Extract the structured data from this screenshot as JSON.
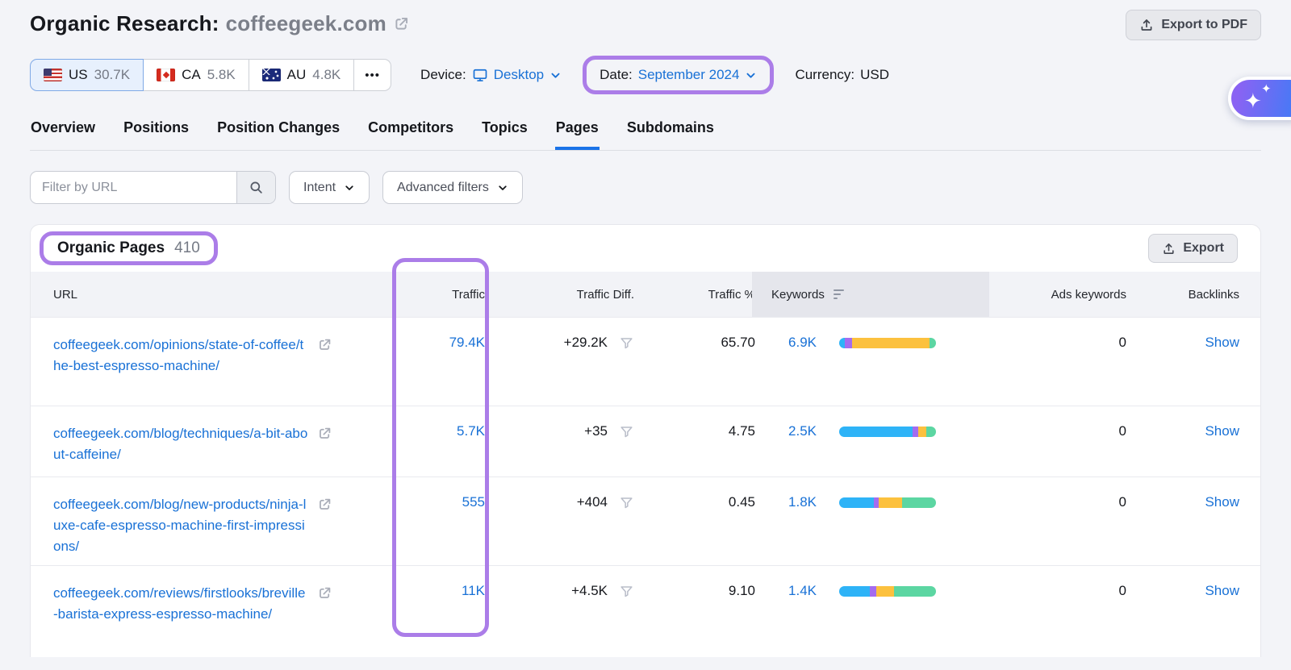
{
  "header": {
    "title_prefix": "Organic Research:",
    "domain": "coffeegeek.com",
    "export_pdf_label": "Export to PDF"
  },
  "controls": {
    "countries": [
      {
        "code": "US",
        "value": "30.7K"
      },
      {
        "code": "CA",
        "value": "5.8K"
      },
      {
        "code": "AU",
        "value": "4.8K"
      }
    ],
    "more_label": "•••",
    "device_label": "Device:",
    "device_value": "Desktop",
    "date_label": "Date:",
    "date_value": "September 2024",
    "currency_label": "Currency:",
    "currency_value": "USD"
  },
  "tabs": [
    {
      "label": "Overview"
    },
    {
      "label": "Positions"
    },
    {
      "label": "Position Changes"
    },
    {
      "label": "Competitors"
    },
    {
      "label": "Topics"
    },
    {
      "label": "Pages"
    },
    {
      "label": "Subdomains"
    }
  ],
  "toolbar": {
    "filter_placeholder": "Filter by URL",
    "intent_label": "Intent",
    "advanced_filters_label": "Advanced filters"
  },
  "table": {
    "title": "Organic Pages",
    "count": "410",
    "export_label": "Export",
    "columns": {
      "url": "URL",
      "traffic": "Traffic",
      "traffic_diff": "Traffic Diff.",
      "traffic_pct": "Traffic %",
      "keywords": "Keywords",
      "ads_keywords": "Ads keywords",
      "backlinks": "Backlinks"
    },
    "rows": [
      {
        "url": "coffeegeek.com/opinions/state-of-coffee/the-best-espresso-machine/",
        "traffic": "79.4K",
        "traffic_diff": "+29.2K",
        "traffic_pct": "65.70",
        "keywords": "6.9K",
        "intent_bar": [
          {
            "intent": "informational",
            "pct": 6
          },
          {
            "intent": "navigational",
            "pct": 7
          },
          {
            "intent": "commercial",
            "pct": 80
          },
          {
            "intent": "transactional",
            "pct": 7
          }
        ],
        "ads_keywords": "0",
        "backlinks": "Show"
      },
      {
        "url": "coffeegeek.com/blog/techniques/a-bit-about-caffeine/",
        "traffic": "5.7K",
        "traffic_diff": "+35",
        "traffic_pct": "4.75",
        "keywords": "2.5K",
        "intent_bar": [
          {
            "intent": "informational",
            "pct": 76
          },
          {
            "intent": "navigational",
            "pct": 6
          },
          {
            "intent": "commercial",
            "pct": 8
          },
          {
            "intent": "transactional",
            "pct": 10
          }
        ],
        "ads_keywords": "0",
        "backlinks": "Show"
      },
      {
        "url": "coffeegeek.com/blog/new-products/ninja-luxe-cafe-espresso-machine-first-impressions/",
        "traffic": "555",
        "traffic_diff": "+404",
        "traffic_pct": "0.45",
        "keywords": "1.8K",
        "intent_bar": [
          {
            "intent": "informational",
            "pct": 36
          },
          {
            "intent": "navigational",
            "pct": 5
          },
          {
            "intent": "commercial",
            "pct": 24
          },
          {
            "intent": "transactional",
            "pct": 35
          }
        ],
        "ads_keywords": "0",
        "backlinks": "Show"
      },
      {
        "url": "coffeegeek.com/reviews/firstlooks/breville-barista-express-espresso-machine/",
        "traffic": "11K",
        "traffic_diff": "+4.5K",
        "traffic_pct": "9.10",
        "keywords": "1.4K",
        "intent_bar": [
          {
            "intent": "informational",
            "pct": 32
          },
          {
            "intent": "navigational",
            "pct": 6
          },
          {
            "intent": "commercial",
            "pct": 19
          },
          {
            "intent": "transactional",
            "pct": 43
          }
        ],
        "ads_keywords": "0",
        "backlinks": "Show"
      }
    ]
  },
  "colors": {
    "accent_blue": "#1971d6",
    "annotation_purple": "#ab7de8",
    "tab_underline": "#1a73e8",
    "intent": {
      "informational": "#2eb3f7",
      "navigational": "#a46cef",
      "commercial": "#fcc13e",
      "transactional": "#5cd6a2"
    }
  },
  "icons": [
    "external-link-icon",
    "upload-icon",
    "monitor-icon",
    "chevron-down-icon",
    "search-icon",
    "filter-funnel-icon",
    "sort-desc-icon",
    "sparkles-icon",
    "us-flag-icon",
    "ca-flag-icon",
    "au-flag-icon",
    "ellipsis-icon"
  ]
}
